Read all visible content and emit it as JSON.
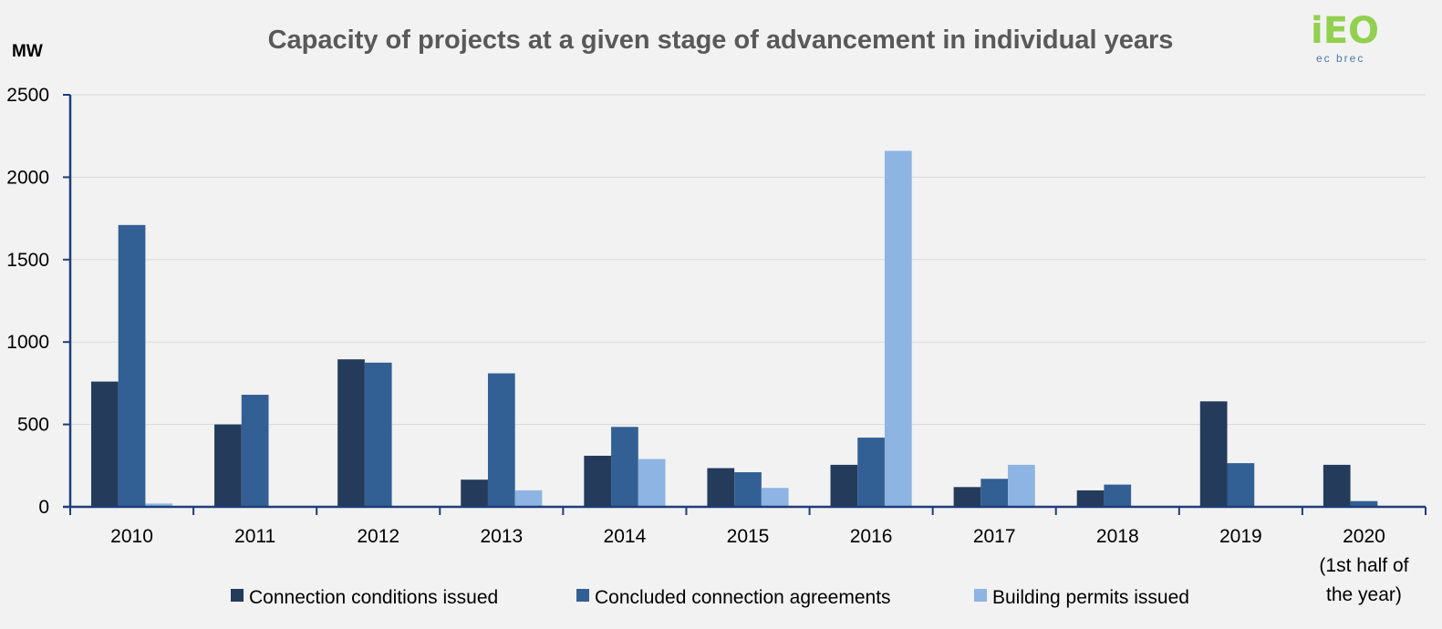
{
  "chart_data": {
    "type": "bar",
    "title": "Capacity of projects at a given stage of advancement in individual years",
    "ylabel": "MW",
    "ylim": [
      0,
      2500
    ],
    "yticks": [
      0,
      500,
      1000,
      1500,
      2000,
      2500
    ],
    "grid": true,
    "legend_position": "bottom",
    "categories": [
      [
        "2010"
      ],
      [
        "2011"
      ],
      [
        "2012"
      ],
      [
        "2013"
      ],
      [
        "2014"
      ],
      [
        "2015"
      ],
      [
        "2016"
      ],
      [
        "2017"
      ],
      [
        "2018"
      ],
      [
        "2019"
      ],
      [
        "2020",
        "(1st half of",
        "the year)"
      ]
    ],
    "series": [
      {
        "name": "Connection conditions issued",
        "color": "#243b5c",
        "values": [
          760,
          500,
          895,
          165,
          310,
          235,
          255,
          120,
          100,
          640,
          255
        ]
      },
      {
        "name": "Concluded connection agreements",
        "color": "#336094",
        "values": [
          1710,
          680,
          875,
          810,
          485,
          210,
          420,
          170,
          135,
          265,
          35
        ]
      },
      {
        "name": "Building permits issued",
        "color": "#8eb4e3",
        "values": [
          20,
          0,
          0,
          100,
          290,
          115,
          2160,
          255,
          0,
          0,
          0
        ]
      }
    ]
  },
  "logo": {
    "text": "iEO",
    "subtitle": "ec brec",
    "color": "#92d050"
  }
}
